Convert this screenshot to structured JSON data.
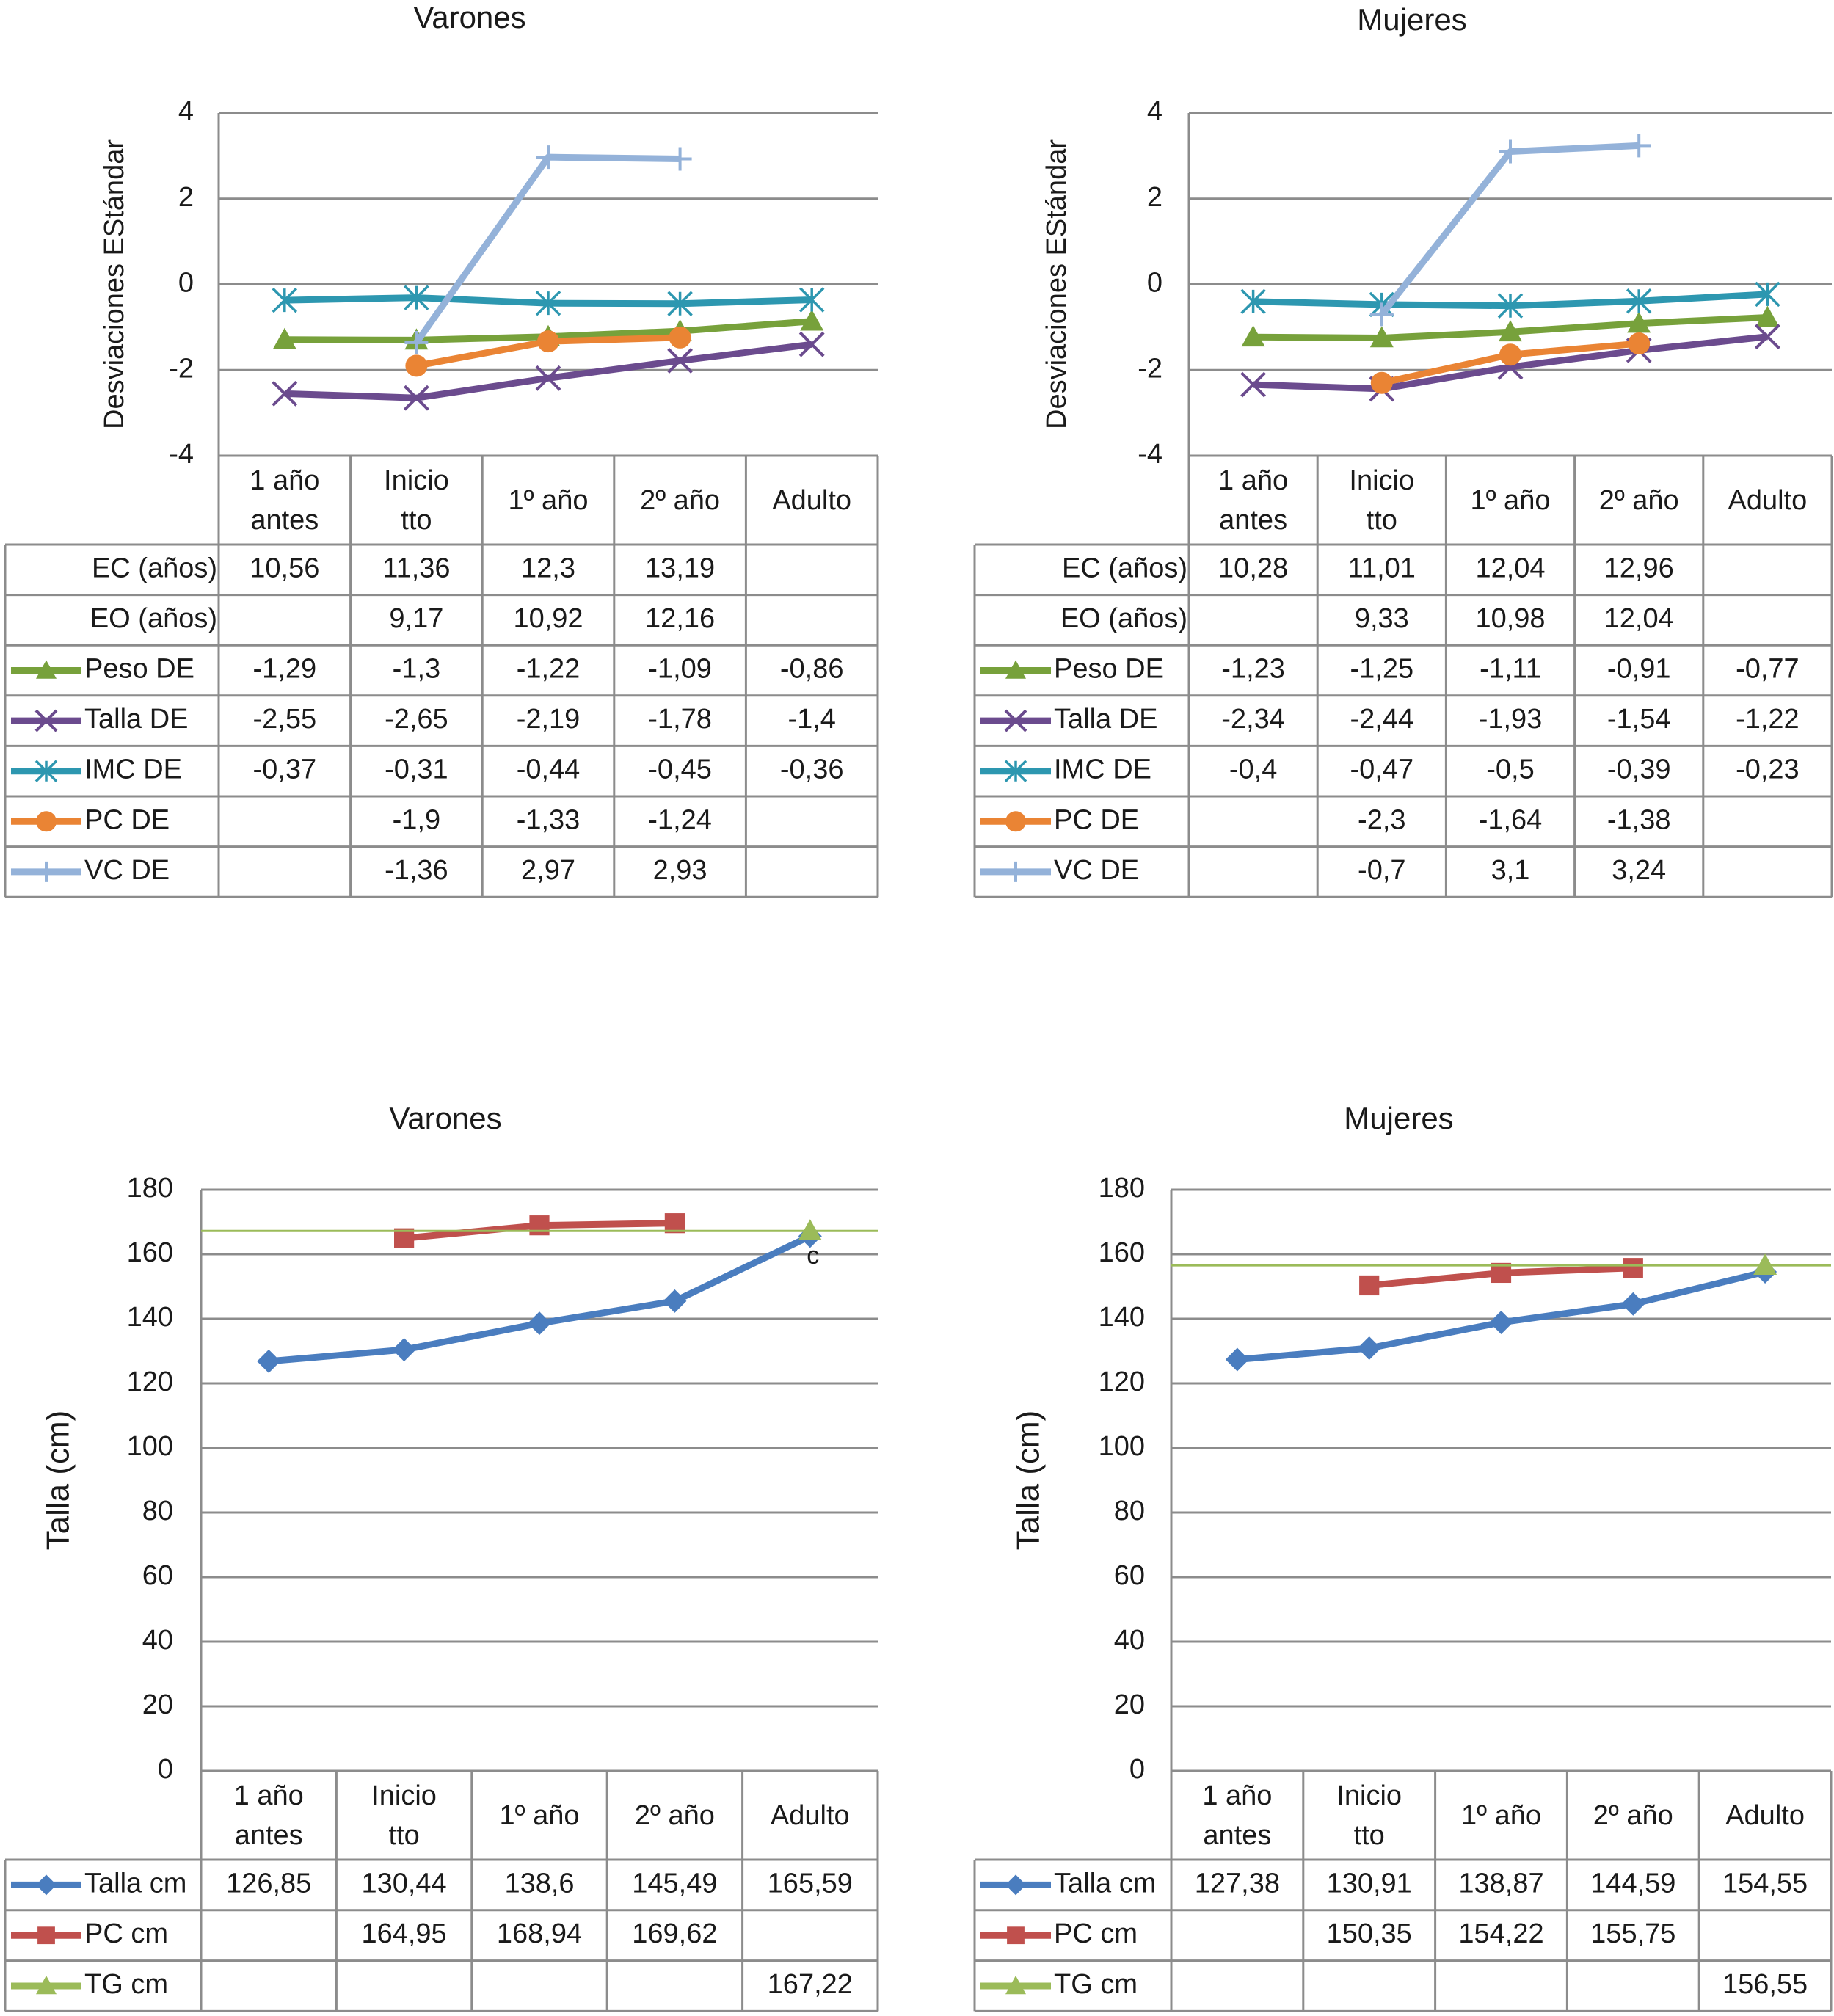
{
  "chart_data": [
    {
      "type": "line",
      "title": "Varones",
      "y_label": "Desviaciones EStándar",
      "categories": [
        "1 año antes",
        "Inicio tto",
        "1º año",
        "2º año",
        "Adulto"
      ],
      "ylim": [
        -4,
        4
      ],
      "yticks": [
        -4,
        -2,
        0,
        2,
        4
      ],
      "grid": true,
      "table_rows": [
        {
          "name": "EC (años)",
          "values": [
            10.56,
            11.36,
            12.3,
            13.19,
            null
          ],
          "value_labels": [
            "10,56",
            "11,36",
            "12,3",
            "13,19",
            null
          ]
        },
        {
          "name": "EO (años)",
          "values": [
            null,
            9.17,
            10.92,
            12.16,
            null
          ],
          "value_labels": [
            null,
            "9,17",
            "10,92",
            "12,16",
            null
          ]
        }
      ],
      "series": [
        {
          "name": "Peso DE",
          "color": "#77a13b",
          "marker": "triangle",
          "values": [
            -1.29,
            -1.3,
            -1.22,
            -1.09,
            -0.86
          ],
          "value_labels": [
            "-1,29",
            "-1,3",
            "-1,22",
            "-1,09",
            "-0,86"
          ]
        },
        {
          "name": "Talla DE",
          "color": "#6b4b8e",
          "marker": "x",
          "values": [
            -2.55,
            -2.65,
            -2.19,
            -1.78,
            -1.4
          ],
          "value_labels": [
            "-2,55",
            "-2,65",
            "-2,19",
            "-1,78",
            "-1,4"
          ]
        },
        {
          "name": "IMC DE",
          "color": "#2d97b0",
          "marker": "asterisk",
          "values": [
            -0.37,
            -0.31,
            -0.44,
            -0.45,
            -0.36
          ],
          "value_labels": [
            "-0,37",
            "-0,31",
            "-0,44",
            "-0,45",
            "-0,36"
          ]
        },
        {
          "name": "PC DE",
          "color": "#ea8434",
          "marker": "circle",
          "values": [
            null,
            -1.9,
            -1.33,
            -1.24,
            null
          ],
          "value_labels": [
            null,
            "-1,9",
            "-1,33",
            "-1,24",
            null
          ]
        },
        {
          "name": "VC DE",
          "color": "#94b2d9",
          "marker": "plus",
          "values": [
            null,
            -1.36,
            2.97,
            2.93,
            null
          ],
          "value_labels": [
            null,
            "-1,36",
            "2,97",
            "2,93",
            null
          ]
        }
      ]
    },
    {
      "type": "line",
      "title": "Mujeres",
      "y_label": "Desviaciones EStándar",
      "categories": [
        "1 año antes",
        "Inicio tto",
        "1º año",
        "2º año",
        "Adulto"
      ],
      "ylim": [
        -4,
        4
      ],
      "yticks": [
        -4,
        -2,
        0,
        2,
        4
      ],
      "grid": true,
      "table_rows": [
        {
          "name": "EC (años)",
          "values": [
            10.28,
            11.01,
            12.04,
            12.96,
            null
          ],
          "value_labels": [
            "10,28",
            "11,01",
            "12,04",
            "12,96",
            null
          ]
        },
        {
          "name": "EO (años)",
          "values": [
            null,
            9.33,
            10.98,
            12.04,
            null
          ],
          "value_labels": [
            null,
            "9,33",
            "10,98",
            "12,04",
            null
          ]
        }
      ],
      "series": [
        {
          "name": "Peso DE",
          "color": "#77a13b",
          "marker": "triangle",
          "values": [
            -1.23,
            -1.25,
            -1.11,
            -0.91,
            -0.77
          ],
          "value_labels": [
            "-1,23",
            "-1,25",
            "-1,11",
            "-0,91",
            "-0,77"
          ]
        },
        {
          "name": "Talla DE",
          "color": "#6b4b8e",
          "marker": "x",
          "values": [
            -2.34,
            -2.44,
            -1.93,
            -1.54,
            -1.22
          ],
          "value_labels": [
            "-2,34",
            "-2,44",
            "-1,93",
            "-1,54",
            "-1,22"
          ]
        },
        {
          "name": "IMC DE",
          "color": "#2d97b0",
          "marker": "asterisk",
          "values": [
            -0.4,
            -0.47,
            -0.5,
            -0.39,
            -0.23
          ],
          "value_labels": [
            "-0,4",
            "-0,47",
            "-0,5",
            "-0,39",
            "-0,23"
          ]
        },
        {
          "name": "PC DE",
          "color": "#ea8434",
          "marker": "circle",
          "values": [
            null,
            -2.3,
            -1.64,
            -1.38,
            null
          ],
          "value_labels": [
            null,
            "-2,3",
            "-1,64",
            "-1,38",
            null
          ]
        },
        {
          "name": "VC DE",
          "color": "#94b2d9",
          "marker": "plus",
          "values": [
            null,
            -0.7,
            3.1,
            3.24,
            null
          ],
          "value_labels": [
            null,
            "-0,7",
            "3,1",
            "3,24",
            null
          ]
        }
      ]
    },
    {
      "type": "line",
      "title": "Varones",
      "y_label": "Talla (cm)",
      "categories": [
        "1 año antes",
        "Inicio tto",
        "1º año",
        "2º año",
        "Adulto"
      ],
      "ylim": [
        0,
        180
      ],
      "yticks": [
        0,
        20,
        40,
        60,
        80,
        100,
        120,
        140,
        160,
        180
      ],
      "grid": true,
      "annotation": "c",
      "series": [
        {
          "name": "Talla cm",
          "color": "#4a7dbf",
          "marker": "diamond",
          "values": [
            126.85,
            130.44,
            138.6,
            145.49,
            165.59
          ],
          "value_labels": [
            "126,85",
            "130,44",
            "138,6",
            "145,49",
            "165,59"
          ]
        },
        {
          "name": "PC cm",
          "color": "#c0504d",
          "marker": "square",
          "values": [
            null,
            164.95,
            168.94,
            169.62,
            null
          ],
          "value_labels": [
            null,
            "164,95",
            "168,94",
            "169,62",
            null
          ]
        },
        {
          "name": "TG cm",
          "color": "#9bbb59",
          "marker": "triangle",
          "reference_line": true,
          "values": [
            null,
            null,
            null,
            null,
            167.22
          ],
          "value_labels": [
            null,
            null,
            null,
            null,
            "167,22"
          ]
        }
      ]
    },
    {
      "type": "line",
      "title": "Mujeres",
      "y_label": "Talla (cm)",
      "categories": [
        "1 año antes",
        "Inicio tto",
        "1º año",
        "2º año",
        "Adulto"
      ],
      "ylim": [
        0,
        180
      ],
      "yticks": [
        0,
        20,
        40,
        60,
        80,
        100,
        120,
        140,
        160,
        180
      ],
      "grid": true,
      "series": [
        {
          "name": "Talla cm",
          "color": "#4a7dbf",
          "marker": "diamond",
          "values": [
            127.38,
            130.91,
            138.87,
            144.59,
            154.55
          ],
          "value_labels": [
            "127,38",
            "130,91",
            "138,87",
            "144,59",
            "154,55"
          ]
        },
        {
          "name": "PC cm",
          "color": "#c0504d",
          "marker": "square",
          "values": [
            null,
            150.35,
            154.22,
            155.75,
            null
          ],
          "value_labels": [
            null,
            "150,35",
            "154,22",
            "155,75",
            null
          ]
        },
        {
          "name": "TG cm",
          "color": "#9bbb59",
          "marker": "triangle",
          "reference_line": true,
          "values": [
            null,
            null,
            null,
            null,
            156.55
          ],
          "value_labels": [
            null,
            null,
            null,
            null,
            "156,55"
          ]
        }
      ]
    }
  ]
}
